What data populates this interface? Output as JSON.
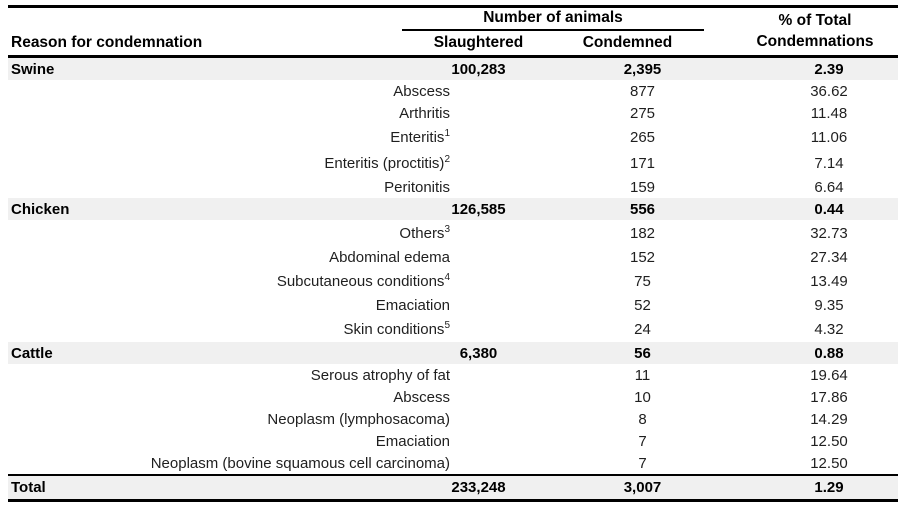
{
  "table": {
    "columns": {
      "reason": "Reason for condemnation",
      "group_header": "Number of animals",
      "slaughtered": "Slaughtered",
      "condemned": "Condemned",
      "pct_line1": "% of Total",
      "pct_line2": "Condemnations"
    },
    "groups": [
      {
        "name": "Swine",
        "slaughtered": "100,283",
        "condemned": "2,395",
        "pct": "2.39",
        "rows": [
          {
            "reason": "Abscess",
            "sup": "",
            "condemned": "877",
            "pct": "36.62"
          },
          {
            "reason": "Arthritis",
            "sup": "",
            "condemned": "275",
            "pct": "11.48"
          },
          {
            "reason": "Enteritis",
            "sup": "1",
            "condemned": "265",
            "pct": "11.06"
          },
          {
            "reason": "Enteritis (proctitis)",
            "sup": "2",
            "condemned": "171",
            "pct": "7.14"
          },
          {
            "reason": "Peritonitis",
            "sup": "",
            "condemned": "159",
            "pct": "6.64"
          }
        ]
      },
      {
        "name": "Chicken",
        "slaughtered": "126,585",
        "condemned": "556",
        "pct": "0.44",
        "rows": [
          {
            "reason": "Others",
            "sup": "3",
            "condemned": "182",
            "pct": "32.73"
          },
          {
            "reason": "Abdominal edema",
            "sup": "",
            "condemned": "152",
            "pct": "27.34"
          },
          {
            "reason": "Subcutaneous conditions",
            "sup": "4",
            "condemned": "75",
            "pct": "13.49"
          },
          {
            "reason": "Emaciation",
            "sup": "",
            "condemned": "52",
            "pct": "9.35"
          },
          {
            "reason": "Skin conditions",
            "sup": "5",
            "condemned": "24",
            "pct": "4.32"
          }
        ]
      },
      {
        "name": "Cattle",
        "slaughtered": "6,380",
        "condemned": "56",
        "pct": "0.88",
        "rows": [
          {
            "reason": "Serous atrophy of fat",
            "sup": "",
            "condemned": "11",
            "pct": "19.64"
          },
          {
            "reason": "Abscess",
            "sup": "",
            "condemned": "10",
            "pct": "17.86"
          },
          {
            "reason": "Neoplasm (lymphosacoma)",
            "sup": "",
            "condemned": "8",
            "pct": "14.29"
          },
          {
            "reason": "Emaciation",
            "sup": "",
            "condemned": "7",
            "pct": "12.50"
          },
          {
            "reason": "Neoplasm (bovine squamous cell carcinoma)",
            "sup": "",
            "condemned": "7",
            "pct": "12.50"
          }
        ]
      }
    ],
    "total": {
      "name": "Total",
      "slaughtered": "233,248",
      "condemned": "3,007",
      "pct": "1.29"
    },
    "colors": {
      "band_bg": "#f0f0f0",
      "rule": "#000000",
      "text": "#000000"
    }
  }
}
